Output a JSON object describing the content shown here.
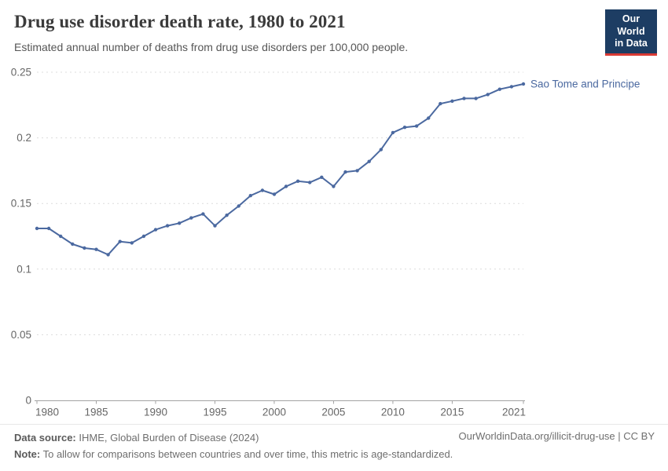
{
  "header": {
    "title": "Drug use disorder death rate, 1980 to 2021",
    "subtitle": "Estimated annual number of deaths from drug use disorders per 100,000 people.",
    "logo": {
      "line1": "Our World",
      "line2": "in Data",
      "bg_color": "#1d3d63",
      "accent_color": "#d93a34"
    }
  },
  "chart_data": {
    "type": "line",
    "title": "Drug use disorder death rate, 1980 to 2021",
    "xlabel": "",
    "ylabel": "",
    "xlim": [
      1980,
      2021
    ],
    "ylim": [
      0,
      0.25
    ],
    "grid": "horizontal dashed",
    "legend_position": "end-of-line label",
    "x_ticks": [
      {
        "v": 1980,
        "label": "1980"
      },
      {
        "v": 1985,
        "label": "1985"
      },
      {
        "v": 1990,
        "label": "1990"
      },
      {
        "v": 1995,
        "label": "1995"
      },
      {
        "v": 2000,
        "label": "2000"
      },
      {
        "v": 2005,
        "label": "2005"
      },
      {
        "v": 2010,
        "label": "2010"
      },
      {
        "v": 2015,
        "label": "2015"
      },
      {
        "v": 2021,
        "label": "2021"
      }
    ],
    "y_ticks": [
      {
        "v": 0,
        "label": "0"
      },
      {
        "v": 0.05,
        "label": "0.05"
      },
      {
        "v": 0.1,
        "label": "0.1"
      },
      {
        "v": 0.15,
        "label": "0.15"
      },
      {
        "v": 0.2,
        "label": "0.2"
      },
      {
        "v": 0.25,
        "label": "0.25"
      }
    ],
    "series": [
      {
        "name": "Sao Tome and Principe",
        "color": "#4b69a0",
        "x": [
          1980,
          1981,
          1982,
          1983,
          1984,
          1985,
          1986,
          1987,
          1988,
          1989,
          1990,
          1991,
          1992,
          1993,
          1994,
          1995,
          1996,
          1997,
          1998,
          1999,
          2000,
          2001,
          2002,
          2003,
          2004,
          2005,
          2006,
          2007,
          2008,
          2009,
          2010,
          2011,
          2012,
          2013,
          2014,
          2015,
          2016,
          2017,
          2018,
          2019,
          2020,
          2021
        ],
        "values": [
          0.131,
          0.131,
          0.125,
          0.119,
          0.116,
          0.115,
          0.111,
          0.121,
          0.12,
          0.125,
          0.13,
          0.133,
          0.135,
          0.139,
          0.142,
          0.133,
          0.141,
          0.148,
          0.156,
          0.16,
          0.157,
          0.163,
          0.167,
          0.166,
          0.17,
          0.163,
          0.174,
          0.175,
          0.182,
          0.191,
          0.204,
          0.208,
          0.209,
          0.215,
          0.226,
          0.228,
          0.23,
          0.23,
          0.233,
          0.237,
          0.239,
          0.241
        ]
      }
    ],
    "axis_text_color": "#666666"
  },
  "footer": {
    "datasource_label": "Data source:",
    "datasource_text": " IHME, Global Burden of Disease (2024)",
    "note_label": "Note:",
    "note_text": " To allow for comparisons between countries and over time, this metric is age-standardized.",
    "link": "OurWorldinData.org/illicit-drug-use | CC BY"
  }
}
